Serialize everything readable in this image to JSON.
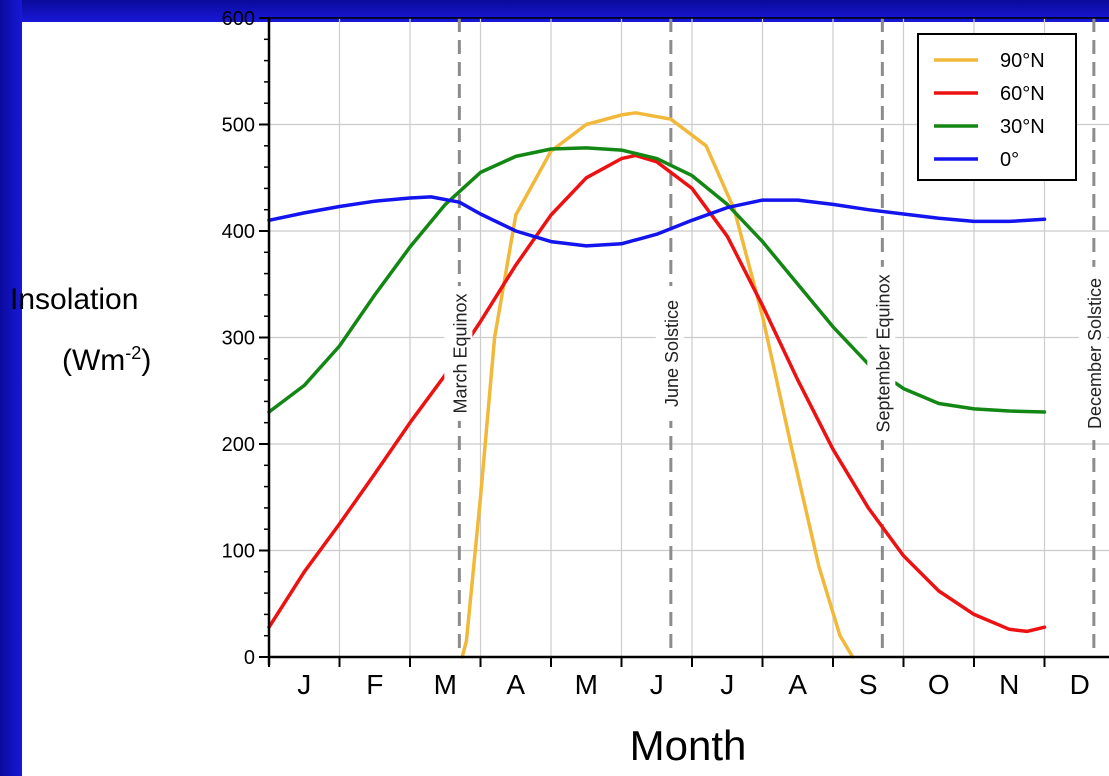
{
  "chart_data": {
    "type": "line",
    "title": "",
    "xlabel": "Month",
    "ylabel_line1": "Insolation",
    "ylabel_unit_base": "(Wm",
    "ylabel_unit_exp": "-2",
    "ylabel_unit_close": ")",
    "x_ticks": [
      "J",
      "F",
      "M",
      "A",
      "M",
      "J",
      "J",
      "A",
      "S",
      "O",
      "N",
      "D"
    ],
    "ylim": [
      0,
      600
    ],
    "y_ticks": [
      0,
      100,
      200,
      300,
      400,
      500,
      600
    ],
    "grid": true,
    "legend_position": "top-right",
    "markers": [
      {
        "label": "March Equinox",
        "x": 2.7
      },
      {
        "label": "June Solstice",
        "x": 5.7
      },
      {
        "label": "September Equinox",
        "x": 8.7
      },
      {
        "label": "December Solstice",
        "x": 11.7
      }
    ],
    "series": [
      {
        "name": "90°N",
        "color": "#f2b83a",
        "points": [
          [
            2.74,
            0
          ],
          [
            2.8,
            15
          ],
          [
            3.0,
            150
          ],
          [
            3.2,
            300
          ],
          [
            3.5,
            415
          ],
          [
            4.0,
            475
          ],
          [
            4.5,
            500
          ],
          [
            5.0,
            509
          ],
          [
            5.2,
            511
          ],
          [
            5.7,
            505
          ],
          [
            6.2,
            480
          ],
          [
            6.6,
            420
          ],
          [
            7.0,
            320
          ],
          [
            7.4,
            200
          ],
          [
            7.8,
            85
          ],
          [
            8.1,
            20
          ],
          [
            8.28,
            0
          ]
        ]
      },
      {
        "name": "60°N",
        "color": "#ee1111",
        "points": [
          [
            0.0,
            28
          ],
          [
            0.5,
            80
          ],
          [
            1.0,
            125
          ],
          [
            1.5,
            172
          ],
          [
            2.0,
            220
          ],
          [
            2.5,
            265
          ],
          [
            3.0,
            315
          ],
          [
            3.5,
            368
          ],
          [
            4.0,
            415
          ],
          [
            4.5,
            450
          ],
          [
            5.0,
            468
          ],
          [
            5.2,
            471
          ],
          [
            5.5,
            465
          ],
          [
            6.0,
            440
          ],
          [
            6.5,
            395
          ],
          [
            7.0,
            330
          ],
          [
            7.5,
            260
          ],
          [
            8.0,
            195
          ],
          [
            8.5,
            140
          ],
          [
            9.0,
            95
          ],
          [
            9.5,
            62
          ],
          [
            10.0,
            40
          ],
          [
            10.5,
            26
          ],
          [
            10.75,
            24
          ],
          [
            11.0,
            28
          ]
        ]
      },
      {
        "name": "30°N",
        "color": "#138713",
        "points": [
          [
            0.0,
            230
          ],
          [
            0.5,
            255
          ],
          [
            1.0,
            292
          ],
          [
            1.5,
            340
          ],
          [
            2.0,
            385
          ],
          [
            2.5,
            425
          ],
          [
            3.0,
            455
          ],
          [
            3.5,
            470
          ],
          [
            4.0,
            477
          ],
          [
            4.5,
            478
          ],
          [
            5.0,
            476
          ],
          [
            5.5,
            468
          ],
          [
            6.0,
            452
          ],
          [
            6.5,
            425
          ],
          [
            7.0,
            390
          ],
          [
            7.5,
            350
          ],
          [
            8.0,
            310
          ],
          [
            8.5,
            275
          ],
          [
            9.0,
            252
          ],
          [
            9.5,
            238
          ],
          [
            10.0,
            233
          ],
          [
            10.5,
            231
          ],
          [
            11.0,
            230
          ]
        ]
      },
      {
        "name": "0°",
        "color": "#1414ee",
        "points": [
          [
            0.0,
            410
          ],
          [
            0.5,
            417
          ],
          [
            1.0,
            423
          ],
          [
            1.5,
            428
          ],
          [
            2.0,
            431
          ],
          [
            2.3,
            432
          ],
          [
            2.7,
            427
          ],
          [
            3.0,
            416
          ],
          [
            3.5,
            400
          ],
          [
            4.0,
            390
          ],
          [
            4.5,
            386
          ],
          [
            5.0,
            388
          ],
          [
            5.5,
            397
          ],
          [
            6.0,
            410
          ],
          [
            6.5,
            422
          ],
          [
            7.0,
            429
          ],
          [
            7.5,
            429
          ],
          [
            8.0,
            425
          ],
          [
            8.5,
            420
          ],
          [
            9.0,
            416
          ],
          [
            9.5,
            412
          ],
          [
            10.0,
            409
          ],
          [
            10.5,
            409
          ],
          [
            11.0,
            411
          ]
        ]
      }
    ]
  }
}
